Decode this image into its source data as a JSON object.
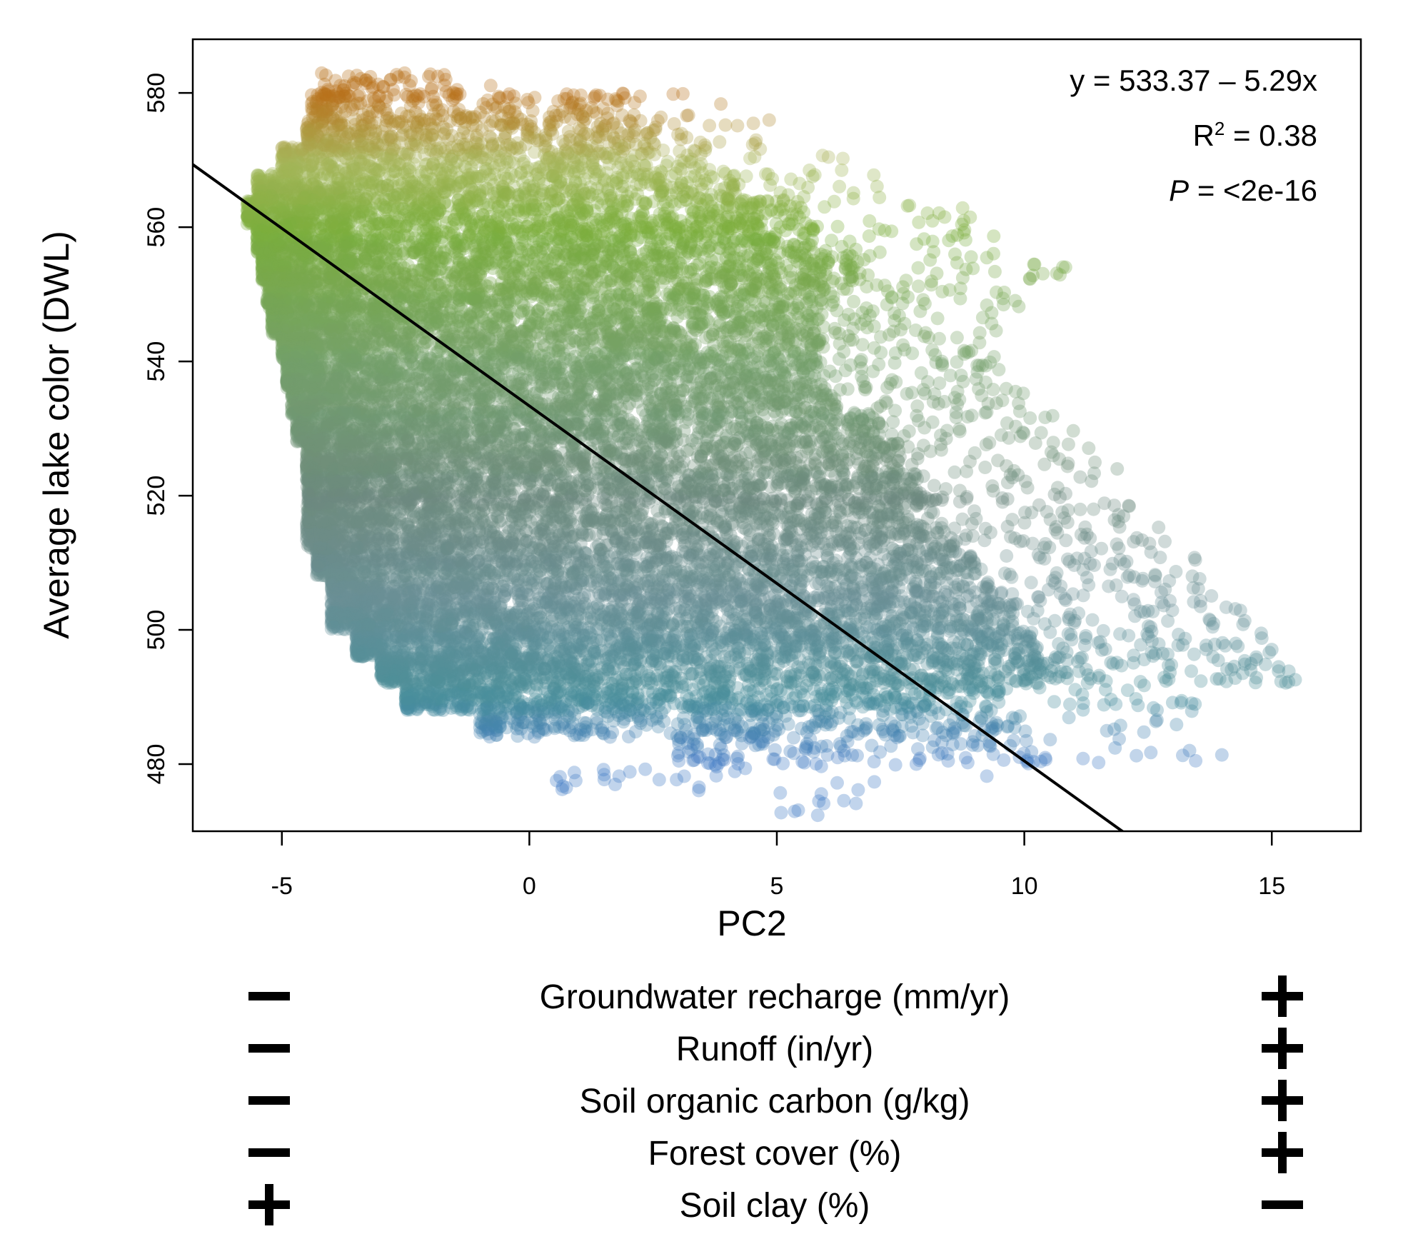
{
  "chart_data": {
    "type": "scatter",
    "title": "",
    "xlabel": "PC2",
    "ylabel": "Average lake color (DWL)",
    "xlim": [
      -6.8,
      16.8
    ],
    "ylim": [
      470,
      588
    ],
    "xticks": [
      "-5",
      "0",
      "5",
      "10",
      "15"
    ],
    "yticks": [
      "480",
      "500",
      "520",
      "540",
      "560",
      "580"
    ],
    "grid": false,
    "legend": "none",
    "regression": {
      "intercept": 533.37,
      "slope": -5.29
    },
    "annotations": {
      "equation": "y = 533.37 – 5.29x",
      "r2_prefix": "R",
      "r2_sup": "2",
      "r2_value": " = 0.38",
      "p_italic": "P",
      "p_value": " = <2e-16"
    },
    "color_scale": [
      {
        "y": 480,
        "color": "#3f78c4"
      },
      {
        "y": 490,
        "color": "#4a8f9a"
      },
      {
        "y": 505,
        "color": "#6a8f95"
      },
      {
        "y": 520,
        "color": "#6d8a7e"
      },
      {
        "y": 540,
        "color": "#74a06a"
      },
      {
        "y": 560,
        "color": "#7bae3c"
      },
      {
        "y": 570,
        "color": "#a7b55a"
      },
      {
        "y": 580,
        "color": "#b8701a"
      }
    ],
    "point_density": [
      {
        "y": 474,
        "x_min": 5.0,
        "x_max": 7.5,
        "n": 10
      },
      {
        "y": 478,
        "x_min": 0.5,
        "x_max": 9.5,
        "n": 30
      },
      {
        "y": 482,
        "x_min": 3.0,
        "x_max": 14.0,
        "n": 120
      },
      {
        "y": 486,
        "x_min": -1.0,
        "x_max": 13.5,
        "n": 320
      },
      {
        "y": 490,
        "x_min": -2.5,
        "x_max": 13.5,
        "n": 650
      },
      {
        "y": 494,
        "x_min": -3.0,
        "x_max": 15.5,
        "n": 900
      },
      {
        "y": 498,
        "x_min": -3.5,
        "x_max": 15.0,
        "n": 950
      },
      {
        "y": 502,
        "x_min": -4.0,
        "x_max": 14.5,
        "n": 950
      },
      {
        "y": 506,
        "x_min": -4.0,
        "x_max": 14.0,
        "n": 900
      },
      {
        "y": 510,
        "x_min": -4.3,
        "x_max": 13.5,
        "n": 850
      },
      {
        "y": 514,
        "x_min": -4.5,
        "x_max": 13.0,
        "n": 800
      },
      {
        "y": 518,
        "x_min": -4.5,
        "x_max": 12.5,
        "n": 800
      },
      {
        "y": 522,
        "x_min": -4.5,
        "x_max": 12.0,
        "n": 800
      },
      {
        "y": 526,
        "x_min": -4.5,
        "x_max": 11.5,
        "n": 800
      },
      {
        "y": 530,
        "x_min": -4.7,
        "x_max": 11.0,
        "n": 800
      },
      {
        "y": 534,
        "x_min": -4.8,
        "x_max": 10.0,
        "n": 800
      },
      {
        "y": 538,
        "x_min": -4.9,
        "x_max": 9.5,
        "n": 800
      },
      {
        "y": 542,
        "x_min": -5.0,
        "x_max": 9.5,
        "n": 800
      },
      {
        "y": 546,
        "x_min": -5.2,
        "x_max": 9.5,
        "n": 800
      },
      {
        "y": 550,
        "x_min": -5.3,
        "x_max": 10.0,
        "n": 800
      },
      {
        "y": 554,
        "x_min": -5.4,
        "x_max": 11.0,
        "n": 780
      },
      {
        "y": 558,
        "x_min": -5.5,
        "x_max": 9.5,
        "n": 760
      },
      {
        "y": 562,
        "x_min": -5.7,
        "x_max": 9.0,
        "n": 720
      },
      {
        "y": 566,
        "x_min": -5.5,
        "x_max": 7.5,
        "n": 600
      },
      {
        "y": 570,
        "x_min": -5.0,
        "x_max": 6.5,
        "n": 450
      },
      {
        "y": 574,
        "x_min": -4.5,
        "x_max": 5.0,
        "n": 320
      },
      {
        "y": 578,
        "x_min": -4.4,
        "x_max": 4.0,
        "n": 200
      },
      {
        "y": 581,
        "x_min": -4.2,
        "x_max": -0.5,
        "n": 70
      }
    ]
  },
  "pc_loadings": [
    {
      "variable": "Groundwater recharge (mm/yr)",
      "left": "−",
      "right": "+"
    },
    {
      "variable": "Runoff (in/yr)",
      "left": "−",
      "right": "+"
    },
    {
      "variable": "Soil organic carbon (g/kg)",
      "left": "−",
      "right": "+"
    },
    {
      "variable": "Forest cover (%)",
      "left": "−",
      "right": "+"
    },
    {
      "variable": "Soil clay (%)",
      "left": "+",
      "right": "−"
    }
  ]
}
